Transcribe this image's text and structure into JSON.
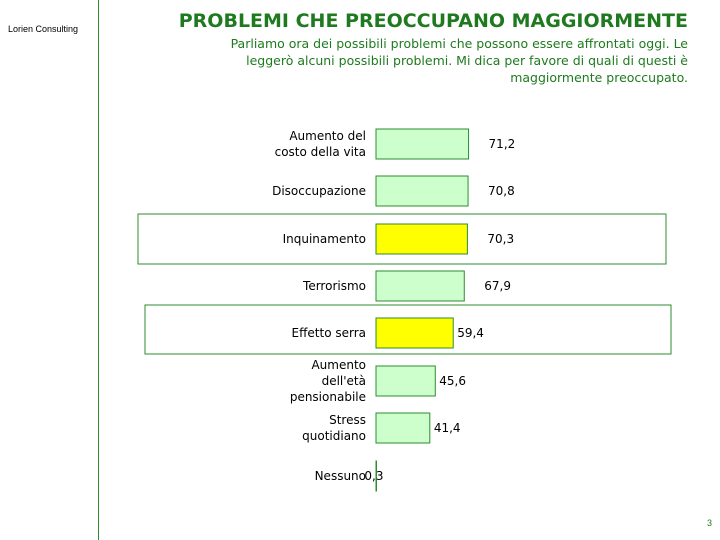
{
  "header": {
    "brand": "Lorien Consulting",
    "title": "PROBLEMI CHE PREOCCUPANO MAGGIORMENTE",
    "subtitle_lines": [
      "Parliamo ora dei possibili problemi che possono essere affrontati oggi. Le",
      "leggerò alcuni possibili problemi. Mi dica per favore di quali di questi è",
      "maggiormente preoccupato."
    ]
  },
  "footer": {
    "page_number": "3"
  },
  "colors": {
    "accent": "#1f7a1f",
    "bar_default": "#ccffcc",
    "bar_highlight": "#ffff00",
    "frame": "#2e8b2e"
  },
  "chart_data": {
    "type": "bar",
    "orientation": "horizontal",
    "categories": [
      [
        "Aumento del",
        "costo della vita"
      ],
      [
        "Disoccupazione"
      ],
      [
        "Inquinamento"
      ],
      [
        "Terrorismo"
      ],
      [
        "Effetto serra"
      ],
      [
        "Aumento",
        "dell'età",
        "pensionabile"
      ],
      [
        "Stress",
        "quotidiano"
      ],
      [
        "Nessuno"
      ]
    ],
    "values": [
      71.2,
      70.8,
      70.3,
      67.9,
      59.4,
      45.6,
      41.4,
      0.3
    ],
    "value_labels": [
      "71,2",
      "70,8",
      "70,3",
      "67,9",
      "59,4",
      "45,6",
      "41,4",
      "0,3"
    ],
    "highlighted": [
      false,
      false,
      true,
      false,
      true,
      false,
      false,
      false
    ],
    "xlim": [
      0,
      100
    ],
    "grid": false,
    "legend": "none"
  }
}
